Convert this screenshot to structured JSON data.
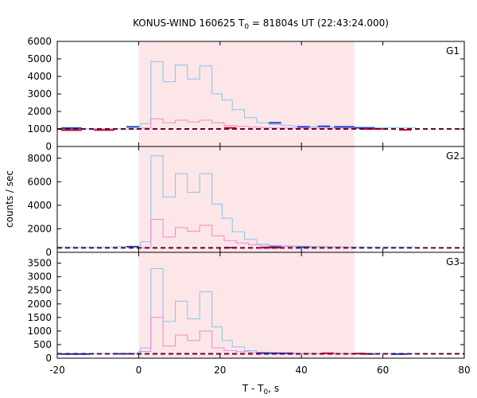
{
  "chart_data": {
    "type": "line",
    "title": "KONUS-WIND 160625 T",
    "title_sub": "0",
    "title_rest": " = 81804s UT (22:43:24.000)",
    "xlabel": "T - T",
    "xlabel_sub": "0",
    "xlabel_rest": ", s",
    "ylabel": "counts / sec",
    "xlim": [
      -20,
      80
    ],
    "x_ticks": [
      -20,
      0,
      20,
      40,
      60,
      80
    ],
    "highlight_interval": [
      0,
      53
    ],
    "colors": {
      "highlight": "#fde6e8",
      "light_series": "#7ec8ee",
      "pink_series": "#ee88cc",
      "blue_bg": "#1f3fd0",
      "red_bg": "#cc0033",
      "background_level": "#660033"
    },
    "panels": [
      {
        "name": "G1",
        "ylim": [
          0,
          6000
        ],
        "y_ticks": [
          0,
          1000,
          2000,
          3000,
          4000,
          5000,
          6000
        ],
        "background_level": 1000,
        "light_series": {
          "edges": [
            -20,
            -12,
            -6,
            0,
            0.5,
            3,
            6,
            9,
            12,
            15,
            18,
            20.5,
            23,
            26,
            29,
            32,
            35,
            38,
            42,
            46,
            50,
            55,
            62,
            68
          ],
          "values": [
            1000,
            1020,
            1000,
            1180,
            1300,
            4850,
            3700,
            4650,
            3850,
            4600,
            3000,
            2650,
            2100,
            1650,
            1350,
            1250,
            1200,
            1150,
            1130,
            1100,
            1080,
            1080,
            1080
          ]
        },
        "pink_series": {
          "edges": [
            0,
            3,
            6,
            9,
            12,
            15,
            18,
            21,
            24,
            27,
            30,
            33,
            36,
            40,
            44,
            48,
            53
          ],
          "values": [
            1050,
            1580,
            1350,
            1500,
            1400,
            1500,
            1350,
            1200,
            1150,
            1100,
            1080,
            1060,
            1050,
            1050,
            1040,
            1040
          ]
        },
        "blue_segments": [
          [
            -19,
            -14,
            1050
          ],
          [
            -3,
            0,
            1120
          ],
          [
            32,
            35,
            1350
          ],
          [
            39,
            42,
            1120
          ],
          [
            44,
            47,
            1150
          ],
          [
            48,
            53,
            1120
          ],
          [
            53,
            58,
            1060
          ]
        ],
        "red_segments": [
          [
            -19,
            -14,
            930
          ],
          [
            -11,
            -6,
            940
          ],
          [
            21,
            24,
            1060
          ],
          [
            55,
            60,
            1000
          ],
          [
            64,
            67,
            950
          ]
        ]
      },
      {
        "name": "G2",
        "ylim": [
          0,
          9000
        ],
        "y_ticks": [
          0,
          2000,
          4000,
          6000,
          8000
        ],
        "background_level": 380,
        "light_series": {
          "edges": [
            -20,
            -12,
            -6,
            0,
            0.5,
            3,
            6,
            9,
            12,
            15,
            18,
            20.5,
            23,
            26,
            29,
            32,
            35,
            38,
            42,
            46,
            50,
            55,
            62,
            68
          ],
          "values": [
            450,
            450,
            480,
            600,
            900,
            8200,
            4700,
            6700,
            5100,
            6700,
            4100,
            2900,
            1750,
            1100,
            700,
            580,
            550,
            520,
            500,
            480,
            460,
            450,
            450
          ]
        },
        "pink_series": {
          "edges": [
            0,
            3,
            6,
            9,
            12,
            15,
            18,
            21,
            24,
            27,
            30,
            33,
            36,
            40,
            44,
            48,
            53
          ],
          "values": [
            400,
            2800,
            1300,
            2100,
            1800,
            2300,
            1400,
            1000,
            800,
            650,
            550,
            520,
            480,
            450,
            430,
            420
          ]
        },
        "blue_segments": [
          [
            -3,
            0,
            480
          ],
          [
            32,
            35,
            450
          ],
          [
            39,
            42,
            430
          ]
        ],
        "red_segments": [
          [
            21,
            24,
            400
          ],
          [
            30,
            35,
            400
          ]
        ]
      },
      {
        "name": "G3",
        "ylim": [
          0,
          3900
        ],
        "y_ticks": [
          0,
          500,
          1000,
          1500,
          2000,
          2500,
          3000,
          3500
        ],
        "background_level": 160,
        "light_series": {
          "edges": [
            -20,
            -12,
            -6,
            0,
            0.5,
            3,
            6,
            9,
            12,
            15,
            18,
            20.5,
            23,
            26,
            29,
            32,
            35,
            38,
            42,
            46,
            50,
            55,
            62,
            68
          ],
          "values": [
            170,
            170,
            180,
            220,
            380,
            3300,
            1350,
            2100,
            1450,
            2450,
            1150,
            650,
            420,
            280,
            220,
            200,
            190,
            185,
            180,
            175,
            170,
            170,
            170
          ]
        },
        "pink_series": {
          "edges": [
            0,
            3,
            6,
            9,
            12,
            15,
            18,
            21,
            24,
            27,
            30,
            33,
            36,
            40,
            44,
            48,
            53
          ],
          "values": [
            250,
            1500,
            450,
            850,
            650,
            1000,
            380,
            280,
            240,
            210,
            190,
            180,
            175,
            170,
            168,
            165
          ]
        },
        "blue_segments": [
          [
            -19,
            -12,
            150
          ],
          [
            -6,
            -1,
            160
          ],
          [
            29,
            34,
            185
          ],
          [
            34,
            38,
            180
          ],
          [
            55,
            58,
            155
          ],
          [
            62,
            66,
            150
          ]
        ],
        "red_segments": [
          [
            45,
            48,
            180
          ],
          [
            53,
            56,
            170
          ]
        ]
      }
    ]
  }
}
